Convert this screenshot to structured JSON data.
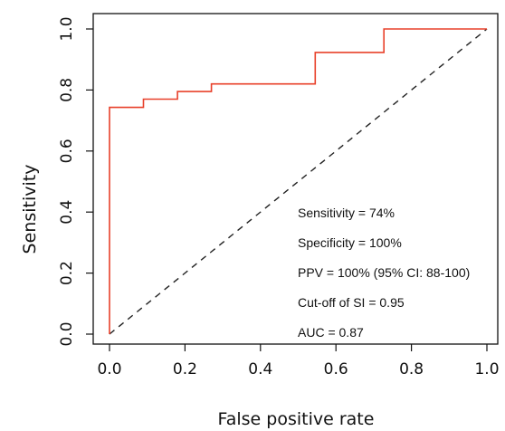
{
  "chart_data": {
    "type": "line",
    "title": "",
    "xlabel": "False positive rate",
    "ylabel": "Sensitivity",
    "xlim": [
      0,
      1
    ],
    "ylim": [
      0,
      1
    ],
    "xticks": [
      "0.0",
      "0.2",
      "0.4",
      "0.6",
      "0.8",
      "1.0"
    ],
    "yticks": [
      "0.0",
      "0.2",
      "0.4",
      "0.6",
      "0.8",
      "1.0"
    ],
    "grid": false,
    "legend": "none",
    "colors": {
      "roc": "#e8402a",
      "reference": "#222222",
      "axis": "#111111"
    },
    "series": [
      {
        "x": [
          0,
          0,
          0.09,
          0.09,
          0.18,
          0.18,
          0.27,
          0.27,
          0.545,
          0.545,
          0.727,
          0.727,
          1.0
        ],
        "y": [
          0,
          0.743,
          0.743,
          0.77,
          0.77,
          0.795,
          0.795,
          0.82,
          0.82,
          0.923,
          0.923,
          1.0,
          1.0
        ]
      }
    ],
    "reference_line": {
      "x": [
        0,
        1
      ],
      "y": [
        0,
        1
      ],
      "style": "dashed"
    },
    "annotations": [
      "Sensitivity = 74%",
      "Specificity = 100%",
      "PPV = 100% (95% CI: 88-100)",
      "Cut-off of SI = 0.95",
      "AUC = 0.87"
    ]
  }
}
